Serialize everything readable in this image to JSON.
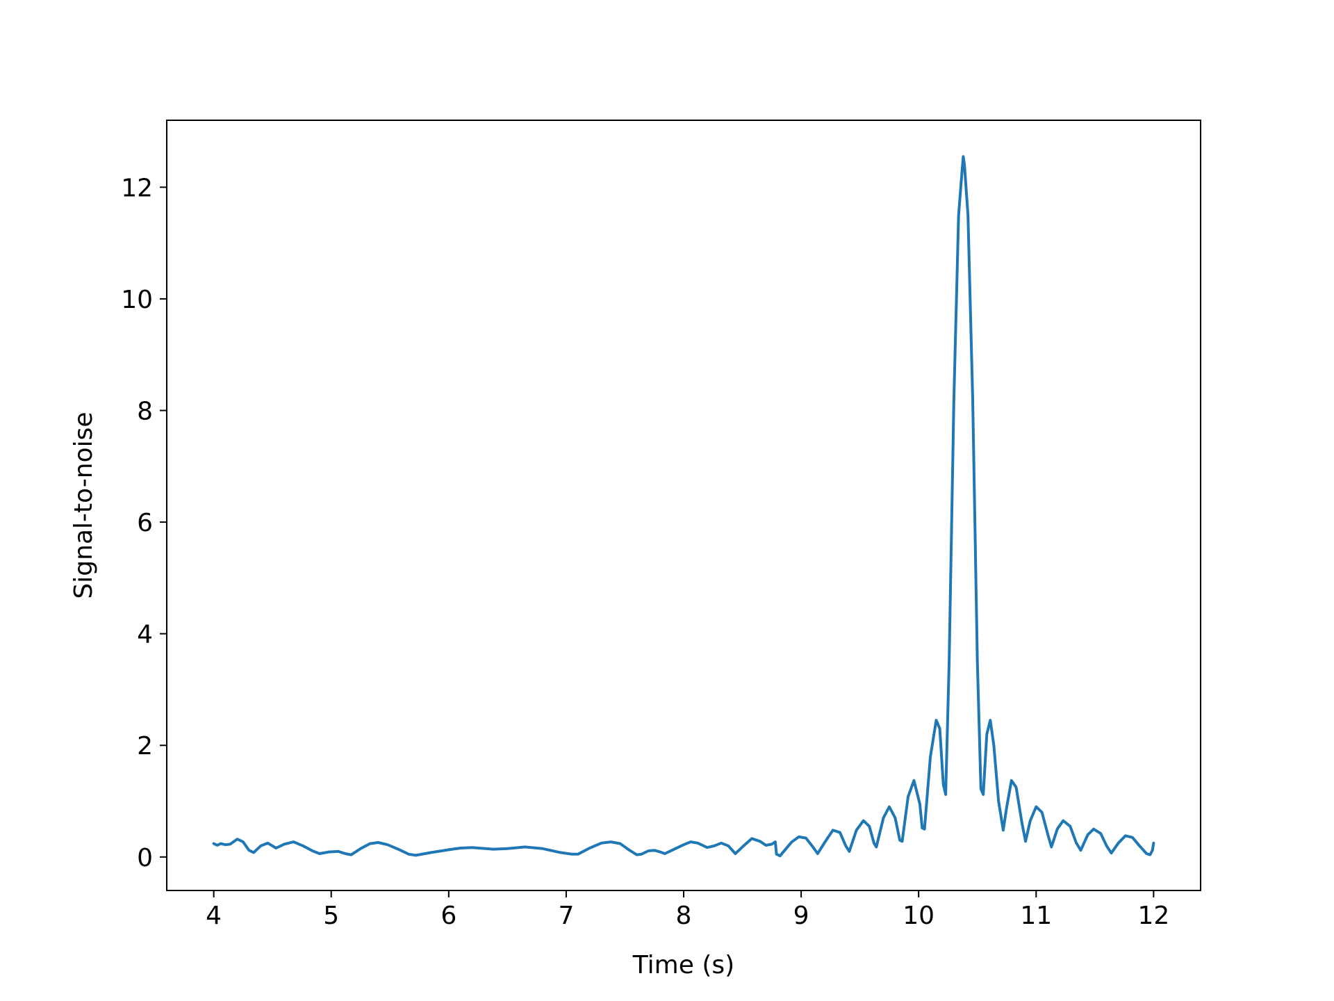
{
  "chart_data": {
    "type": "line",
    "title": "",
    "xlabel": "Time (s)",
    "ylabel": "Signal-to-noise",
    "xlim": [
      3.6,
      12.4
    ],
    "ylim": [
      -0.6,
      13.2
    ],
    "x_ticks": [
      4,
      5,
      6,
      7,
      8,
      9,
      10,
      11,
      12
    ],
    "x_tick_labels": [
      "4",
      "5",
      "6",
      "7",
      "8",
      "9",
      "10",
      "11",
      "12"
    ],
    "y_ticks": [
      0,
      2,
      4,
      6,
      8,
      10,
      12
    ],
    "y_tick_labels": [
      "0",
      "2",
      "4",
      "6",
      "8",
      "10",
      "12"
    ],
    "grid": false,
    "legend": false,
    "series": [
      {
        "color": "#1f77b4",
        "points": [
          [
            4.0,
            0.24
          ],
          [
            4.03,
            0.21
          ],
          [
            4.06,
            0.24
          ],
          [
            4.1,
            0.22
          ],
          [
            4.14,
            0.23
          ],
          [
            4.2,
            0.32
          ],
          [
            4.25,
            0.27
          ],
          [
            4.3,
            0.12
          ],
          [
            4.34,
            0.08
          ],
          [
            4.4,
            0.2
          ],
          [
            4.46,
            0.25
          ],
          [
            4.53,
            0.16
          ],
          [
            4.6,
            0.23
          ],
          [
            4.68,
            0.27
          ],
          [
            4.76,
            0.2
          ],
          [
            4.84,
            0.11
          ],
          [
            4.9,
            0.06
          ],
          [
            4.98,
            0.09
          ],
          [
            5.06,
            0.1
          ],
          [
            5.12,
            0.06
          ],
          [
            5.17,
            0.04
          ],
          [
            5.25,
            0.15
          ],
          [
            5.33,
            0.24
          ],
          [
            5.4,
            0.26
          ],
          [
            5.48,
            0.22
          ],
          [
            5.57,
            0.14
          ],
          [
            5.66,
            0.05
          ],
          [
            5.72,
            0.03
          ],
          [
            5.85,
            0.08
          ],
          [
            6.0,
            0.13
          ],
          [
            6.1,
            0.16
          ],
          [
            6.2,
            0.17
          ],
          [
            6.38,
            0.14
          ],
          [
            6.5,
            0.15
          ],
          [
            6.65,
            0.18
          ],
          [
            6.8,
            0.15
          ],
          [
            6.95,
            0.08
          ],
          [
            7.05,
            0.05
          ],
          [
            7.1,
            0.05
          ],
          [
            7.2,
            0.16
          ],
          [
            7.3,
            0.25
          ],
          [
            7.38,
            0.27
          ],
          [
            7.46,
            0.24
          ],
          [
            7.54,
            0.12
          ],
          [
            7.6,
            0.04
          ],
          [
            7.64,
            0.05
          ],
          [
            7.7,
            0.11
          ],
          [
            7.75,
            0.12
          ],
          [
            7.8,
            0.09
          ],
          [
            7.84,
            0.06
          ],
          [
            7.9,
            0.12
          ],
          [
            8.0,
            0.22
          ],
          [
            8.06,
            0.27
          ],
          [
            8.12,
            0.25
          ],
          [
            8.2,
            0.17
          ],
          [
            8.26,
            0.2
          ],
          [
            8.32,
            0.25
          ],
          [
            8.38,
            0.2
          ],
          [
            8.44,
            0.06
          ],
          [
            8.5,
            0.18
          ],
          [
            8.58,
            0.33
          ],
          [
            8.65,
            0.28
          ],
          [
            8.7,
            0.21
          ],
          [
            8.75,
            0.23
          ],
          [
            8.78,
            0.27
          ],
          [
            8.79,
            0.05
          ],
          [
            8.82,
            0.02
          ],
          [
            8.86,
            0.12
          ],
          [
            8.92,
            0.27
          ],
          [
            8.98,
            0.36
          ],
          [
            9.04,
            0.34
          ],
          [
            9.1,
            0.18
          ],
          [
            9.14,
            0.06
          ],
          [
            9.2,
            0.26
          ],
          [
            9.27,
            0.48
          ],
          [
            9.33,
            0.44
          ],
          [
            9.38,
            0.2
          ],
          [
            9.41,
            0.1
          ],
          [
            9.47,
            0.48
          ],
          [
            9.53,
            0.65
          ],
          [
            9.58,
            0.55
          ],
          [
            9.62,
            0.25
          ],
          [
            9.64,
            0.18
          ],
          [
            9.7,
            0.7
          ],
          [
            9.75,
            0.9
          ],
          [
            9.8,
            0.7
          ],
          [
            9.84,
            0.3
          ],
          [
            9.86,
            0.28
          ],
          [
            9.91,
            1.08
          ],
          [
            9.96,
            1.37
          ],
          [
            10.01,
            0.95
          ],
          [
            10.03,
            0.52
          ],
          [
            10.05,
            0.5
          ],
          [
            10.1,
            1.8
          ],
          [
            10.15,
            2.45
          ],
          [
            10.18,
            2.3
          ],
          [
            10.21,
            1.3
          ],
          [
            10.23,
            1.12
          ],
          [
            10.26,
            3.5
          ],
          [
            10.3,
            8.2
          ],
          [
            10.34,
            11.5
          ],
          [
            10.37,
            12.3
          ],
          [
            10.38,
            12.55
          ],
          [
            10.39,
            12.4
          ],
          [
            10.42,
            11.5
          ],
          [
            10.46,
            8.2
          ],
          [
            10.5,
            3.5
          ],
          [
            10.53,
            1.22
          ],
          [
            10.55,
            1.12
          ],
          [
            10.58,
            2.2
          ],
          [
            10.61,
            2.45
          ],
          [
            10.64,
            2.0
          ],
          [
            10.68,
            1.0
          ],
          [
            10.72,
            0.48
          ],
          [
            10.75,
            0.9
          ],
          [
            10.79,
            1.37
          ],
          [
            10.83,
            1.25
          ],
          [
            10.88,
            0.6
          ],
          [
            10.91,
            0.28
          ],
          [
            10.95,
            0.65
          ],
          [
            11.0,
            0.9
          ],
          [
            11.05,
            0.8
          ],
          [
            11.1,
            0.4
          ],
          [
            11.13,
            0.18
          ],
          [
            11.18,
            0.5
          ],
          [
            11.23,
            0.65
          ],
          [
            11.29,
            0.55
          ],
          [
            11.34,
            0.26
          ],
          [
            11.38,
            0.12
          ],
          [
            11.44,
            0.4
          ],
          [
            11.49,
            0.5
          ],
          [
            11.55,
            0.42
          ],
          [
            11.6,
            0.2
          ],
          [
            11.64,
            0.07
          ],
          [
            11.7,
            0.25
          ],
          [
            11.76,
            0.38
          ],
          [
            11.82,
            0.35
          ],
          [
            11.88,
            0.2
          ],
          [
            11.94,
            0.06
          ],
          [
            11.97,
            0.04
          ],
          [
            11.99,
            0.12
          ],
          [
            12.0,
            0.25
          ]
        ]
      }
    ]
  }
}
